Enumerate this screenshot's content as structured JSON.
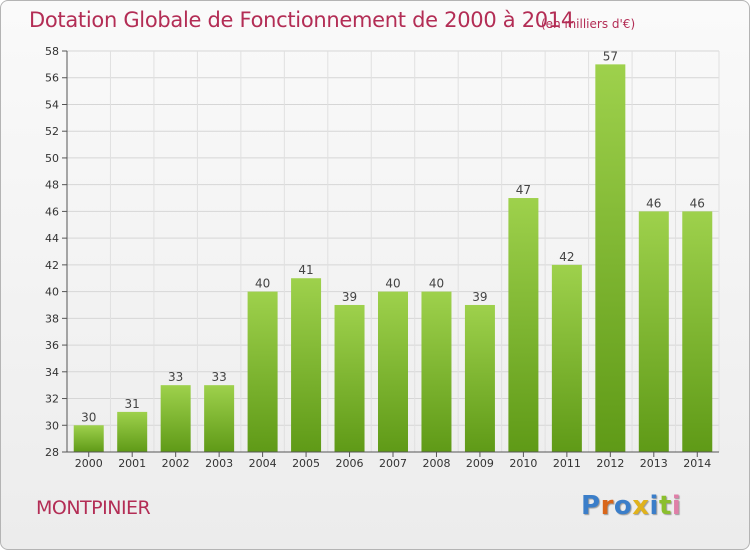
{
  "header": {
    "title": "Dotation Globale de Fonctionnement de 2000 à 2014",
    "subtitle": "(en milliers d'€)"
  },
  "footer": {
    "place": "MONTPINIER",
    "brand": [
      "P",
      "r",
      "o",
      "x",
      "i",
      "t",
      "i"
    ]
  },
  "colors": {
    "title": "#b32d55",
    "bar_light": "#9ed14c",
    "bar_dark": "#5f9a17",
    "brand": [
      "#3b7ec9",
      "#d9661a",
      "#3b7ec9",
      "#e0b21c",
      "#3b7ec9",
      "#8bbf2d",
      "#e07fa8"
    ]
  },
  "chart_data": {
    "type": "bar",
    "title": "Dotation Globale de Fonctionnement de 2000 à 2014",
    "subtitle": "(en milliers d'€)",
    "categories": [
      "2000",
      "2001",
      "2002",
      "2003",
      "2004",
      "2005",
      "2006",
      "2007",
      "2008",
      "2009",
      "2010",
      "2011",
      "2012",
      "2013",
      "2014"
    ],
    "values": [
      30,
      31,
      33,
      33,
      40,
      41,
      39,
      40,
      40,
      39,
      47,
      42,
      57,
      46,
      46
    ],
    "ylim": [
      28,
      58
    ],
    "yticks": [
      28,
      30,
      32,
      34,
      36,
      38,
      40,
      42,
      44,
      46,
      48,
      50,
      52,
      54,
      56,
      58
    ],
    "grid": true,
    "data_labels": true
  }
}
